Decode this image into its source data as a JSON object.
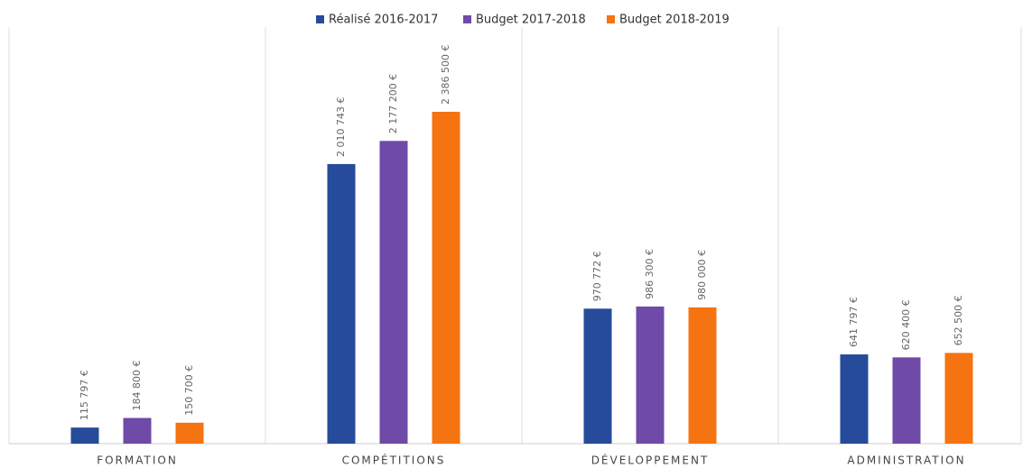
{
  "chart_data": {
    "type": "bar",
    "categories": [
      "FORMATION",
      "COMPÉTITIONS",
      "DÉVELOPPEMENT",
      "ADMINISTRATION"
    ],
    "series": [
      {
        "name": "Réalisé 2016-2017",
        "color": "#264b9b",
        "values": [
          115797,
          2010743,
          970772,
          641797
        ],
        "value_labels": [
          "115 797 €",
          "2 010 743 €",
          "970 772 €",
          "641 797 €"
        ]
      },
      {
        "name": "Budget 2017-2018",
        "color": "#704aa8",
        "values": [
          184800,
          2177200,
          986300,
          620400
        ],
        "value_labels": [
          "184 800 €",
          "2 177 200 €",
          "986 300 €",
          "620 400 €"
        ]
      },
      {
        "name": "Budget 2018-2019",
        "color": "#f57310",
        "values": [
          150700,
          2386500,
          980000,
          652500
        ],
        "value_labels": [
          "150 700 €",
          "2 386 500 €",
          "980 000 €",
          "652 500 €"
        ]
      }
    ],
    "legend": "top"
  }
}
